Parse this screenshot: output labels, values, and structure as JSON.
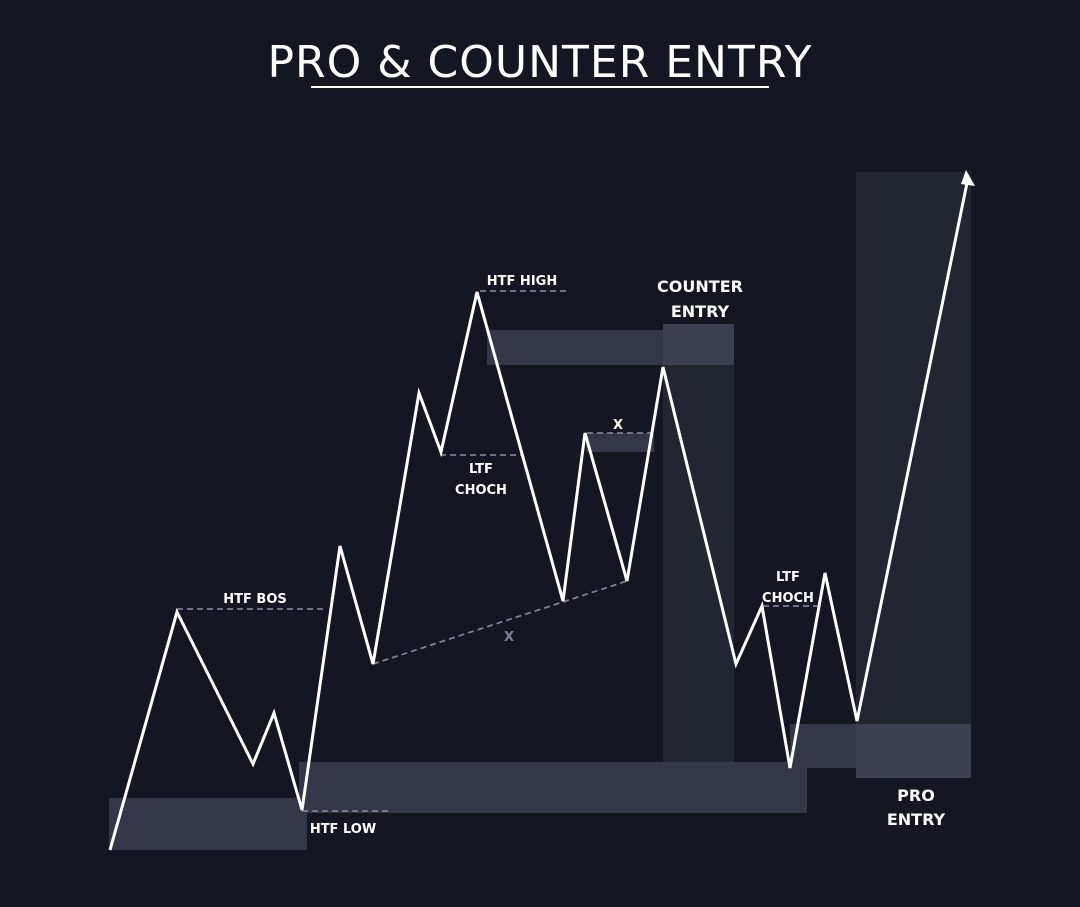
{
  "title": "PRO & COUNTER ENTRY",
  "colors": {
    "background": "#141722",
    "price_line": "#ffffff",
    "zone_light": "#3a3e4f",
    "zone_dark": "#222631",
    "dashed": "#7c8094",
    "text": "#ffffff"
  },
  "labels": {
    "htf_high": "HTF HIGH",
    "htf_bos": "HTF BOS",
    "htf_low": "HTF LOW",
    "ltf_choch_1_line1": "LTF",
    "ltf_choch_1_line2": "CHOCH",
    "ltf_choch_2_line1": "LTF",
    "ltf_choch_2_line2": "CHOCH",
    "x_top": "X",
    "x_trendline": "X",
    "counter_entry_line1": "COUNTER",
    "counter_entry_line2": "ENTRY",
    "pro_entry_line1": "PRO",
    "pro_entry_line2": "ENTRY"
  }
}
